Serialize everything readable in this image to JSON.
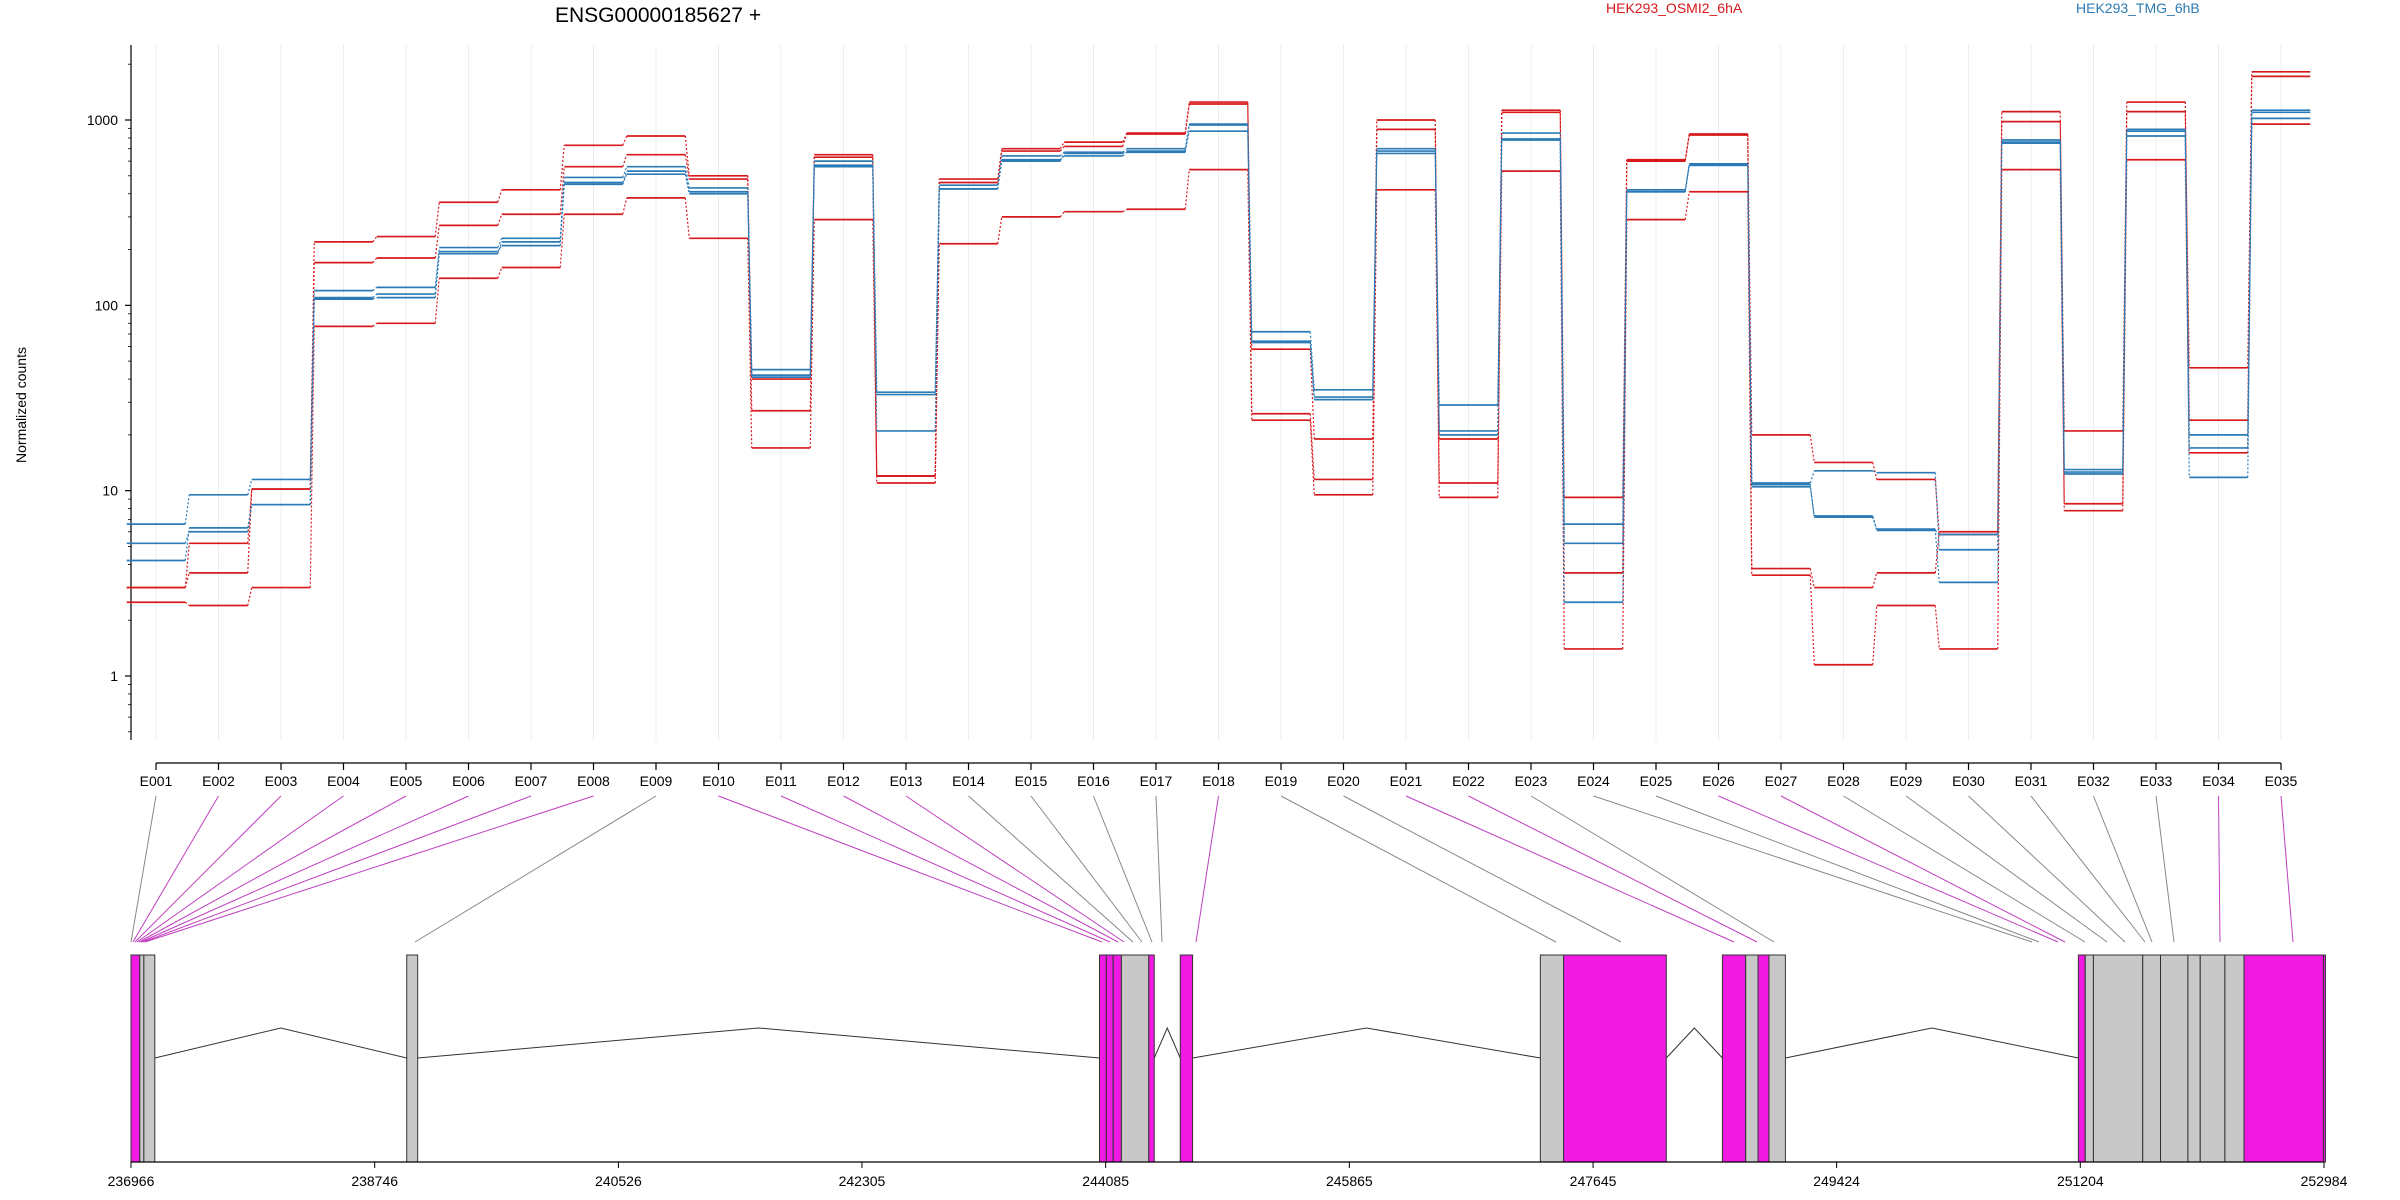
{
  "chart_data": {
    "type": "line",
    "title": "ENSG00000185627 +",
    "ylabel": "Normalized counts",
    "xlabel": "",
    "yscale": "log",
    "ylim": [
      0.45,
      2600
    ],
    "yticks": [
      1,
      10,
      100,
      1000
    ],
    "ytick_labels": [
      "1",
      "10",
      "100",
      "1000"
    ],
    "grid": "vertical lines at each exon",
    "legend": [
      {
        "name": "HEK293_OSMI2_6hA",
        "color": "#d7191c",
        "placement": "top-right"
      },
      {
        "name": "HEK293_TMG_6hB",
        "color": "#2c7bb6",
        "placement": "top-right"
      }
    ],
    "categories": [
      "E001",
      "E002",
      "E003",
      "E004",
      "E005",
      "E006",
      "E007",
      "E008",
      "E009",
      "E010",
      "E011",
      "E012",
      "E013",
      "E014",
      "E015",
      "E016",
      "E017",
      "E018",
      "E019",
      "E020",
      "E021",
      "E022",
      "E023",
      "E024",
      "E025",
      "E026",
      "E027",
      "E028",
      "E029",
      "E030",
      "E031",
      "E032",
      "E033",
      "E034",
      "E035"
    ],
    "series": [
      {
        "group": "HEK293_OSMI2_6hA",
        "style": "solid",
        "values": [
          3.0,
          3.6,
          10.2,
          170,
          180,
          270,
          310,
          560,
          650,
          480,
          40,
          630,
          12,
          460,
          680,
          720,
          840,
          1220,
          58,
          19,
          890,
          19,
          1100,
          3.6,
          600,
          830,
          3.8,
          3.0,
          3.6,
          6.0,
          980,
          21,
          1110,
          46,
          1720
        ]
      },
      {
        "group": "HEK293_OSMI2_6hA",
        "style": "solid",
        "values": [
          2.5,
          2.4,
          3.0,
          77,
          80,
          140,
          160,
          310,
          380,
          230,
          17,
          290,
          11,
          215,
          300,
          320,
          330,
          540,
          24,
          9.5,
          420,
          9.2,
          530,
          1.4,
          290,
          410,
          3.5,
          1.15,
          2.4,
          1.4,
          540,
          7.8,
          610,
          16,
          950
        ]
      },
      {
        "group": "HEK293_OSMI2_6hA",
        "style": "solid",
        "values": [
          3.0,
          5.2,
          10.2,
          220,
          235,
          360,
          420,
          730,
          820,
          500,
          27,
          650,
          12,
          480,
          700,
          760,
          850,
          1250,
          26,
          11.5,
          1000,
          11,
          1130,
          9.2,
          610,
          840,
          20,
          14.2,
          11.5,
          5.8,
          1110,
          8.5,
          1250,
          24,
          1820
        ]
      },
      {
        "group": "HEK293_TMG_6hB",
        "style": "solid",
        "values": [
          4.2,
          6.3,
          8.4,
          110,
          115,
          195,
          210,
          450,
          510,
          400,
          41,
          560,
          33,
          425,
          610,
          640,
          670,
          940,
          64,
          32,
          660,
          21,
          790,
          5.2,
          420,
          570,
          11,
          12.8,
          12.5,
          4.8,
          760,
          13,
          820,
          17,
          1130
        ]
      },
      {
        "group": "HEK293_TMG_6hB",
        "style": "solid",
        "values": [
          6.6,
          9.5,
          11.5,
          120,
          125,
          205,
          230,
          490,
          560,
          430,
          45,
          600,
          34,
          445,
          640,
          670,
          700,
          950,
          72,
          35,
          700,
          29,
          850,
          6.6,
          410,
          580,
          10.5,
          7.2,
          6.2,
          3.2,
          780,
          12.6,
          870,
          20,
          1100
        ]
      },
      {
        "group": "HEK293_TMG_6hB",
        "style": "solid",
        "values": [
          5.2,
          6.0,
          8.4,
          108,
          110,
          190,
          220,
          460,
          530,
          410,
          42,
          570,
          21,
          425,
          600,
          660,
          680,
          870,
          63,
          31,
          680,
          20,
          780,
          2.5,
          410,
          570,
          10.8,
          7.3,
          6.1,
          5.8,
          750,
          12.3,
          890,
          11.8,
          1020
        ]
      }
    ],
    "exon_colors": [
      "gray",
      "magenta",
      "magenta",
      "magenta",
      "magenta",
      "magenta",
      "magenta",
      "magenta",
      "gray",
      "magenta",
      "magenta",
      "magenta",
      "magenta",
      "gray",
      "gray",
      "gray",
      "gray",
      "magenta",
      "gray",
      "gray",
      "magenta",
      "magenta",
      "gray",
      "gray",
      "gray",
      "magenta",
      "magenta",
      "gray",
      "gray",
      "gray",
      "gray",
      "gray",
      "gray",
      "magenta",
      "magenta"
    ],
    "genomic_axis_ticks": [
      "236966",
      "238746",
      "240526",
      "242305",
      "244085",
      "245865",
      "247645",
      "249424",
      "251204",
      "252984"
    ]
  }
}
